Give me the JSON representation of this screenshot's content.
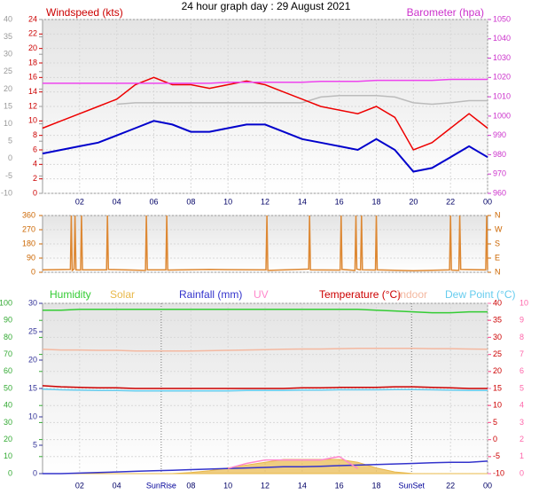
{
  "chart_data": [
    {
      "type": "line",
      "title": "24 hour graph day : 29 August 2021",
      "ylabel": "Windspeed (kts)",
      "y2label": "Barometer (hpa)",
      "axis_colors": {
        "y": "#cc0000",
        "y2": "#cc33cc",
        "y3": "#999999"
      },
      "x": [
        0,
        1,
        2,
        3,
        4,
        5,
        6,
        7,
        8,
        9,
        10,
        11,
        12,
        13,
        14,
        15,
        16,
        17,
        18,
        19,
        20,
        21,
        22,
        23,
        24
      ],
      "xlim": [
        0,
        24
      ],
      "xticks": [
        {
          "value": 2,
          "label": "02"
        },
        {
          "value": 4,
          "label": "04"
        },
        {
          "value": 6,
          "label": "06"
        },
        {
          "value": 8,
          "label": "08"
        },
        10,
        12,
        14,
        16,
        18,
        20,
        22,
        {
          "value": 24,
          "label": "00"
        }
      ],
      "ylim": [
        0,
        24
      ],
      "yticks": [
        0,
        2,
        4,
        6,
        8,
        10,
        12,
        14,
        16,
        18,
        20,
        22,
        24
      ],
      "y2lim": [
        960,
        1050
      ],
      "y2ticks": [
        960,
        970,
        980,
        990,
        1000,
        1010,
        1020,
        1030,
        1040,
        1050
      ],
      "y3lim": [
        -10,
        40
      ],
      "y3ticks": [
        -10,
        -5,
        0,
        5,
        10,
        15,
        20,
        25,
        30,
        35,
        40
      ],
      "grid": true,
      "series": [
        {
          "color": "#bbbbbb",
          "values": [
            null,
            null,
            null,
            null,
            12.3,
            12.5,
            12.5,
            12.5,
            12.5,
            12.5,
            12.5,
            12.5,
            12.5,
            12.5,
            12.5,
            13.3,
            13.5,
            13.5,
            13.5,
            13.3,
            12.5,
            12.3,
            12.5,
            12.8,
            12.8
          ]
        },
        {
          "color": "#ee0000",
          "values": [
            9,
            10,
            11,
            12,
            13,
            15,
            16,
            15,
            15,
            14.5,
            15,
            15.5,
            15,
            14,
            13,
            12,
            11.5,
            11,
            12,
            10.5,
            6,
            7,
            9,
            11,
            9
          ]
        },
        {
          "color": "#0000cc",
          "values": [
            5.5,
            6,
            6.5,
            7,
            8,
            9,
            10,
            9.5,
            8.5,
            8.5,
            9,
            9.5,
            9.5,
            8.5,
            7.5,
            7,
            6.5,
            6,
            7.5,
            6,
            3,
            3.5,
            5,
            6.5,
            5
          ]
        },
        {
          "color": "#ee44ee",
          "axis": "y2",
          "values": [
            1017,
            1017,
            1017,
            1017,
            1017,
            1017,
            1017,
            1017,
            1017,
            1017,
            1017.5,
            1017.5,
            1017.5,
            1017.5,
            1017.5,
            1018,
            1018,
            1018,
            1018.5,
            1018.5,
            1018.5,
            1018.5,
            1019,
            1019,
            1019
          ]
        }
      ]
    },
    {
      "type": "line",
      "axis_colors": {
        "y": "#cc6600",
        "y2": "#cc6600"
      },
      "x": [
        0,
        1.5,
        1.55,
        1.6,
        1.7,
        1.75,
        1.8,
        2.05,
        2.1,
        2.15,
        3.45,
        3.5,
        3.55,
        5.55,
        5.6,
        5.65,
        6.65,
        6.7,
        6.75,
        9,
        12.05,
        12.1,
        12.15,
        14.35,
        14.4,
        14.45,
        16.05,
        16.1,
        16.15,
        16.85,
        16.9,
        16.95,
        17.15,
        17.2,
        17.25,
        17.95,
        18.0,
        18.05,
        20,
        21.95,
        22.0,
        22.05,
        22.45,
        22.5,
        22.55,
        23.9,
        23.95,
        24
      ],
      "xlim": [
        0,
        24
      ],
      "ylim": [
        0,
        360
      ],
      "yticks": [
        0,
        90,
        180,
        270,
        360
      ],
      "y2lim": [
        0,
        360
      ],
      "y2ticks": [
        {
          "value": 0,
          "label": "N"
        },
        {
          "value": 90,
          "label": "E"
        },
        {
          "value": 180,
          "label": "S"
        },
        {
          "value": 270,
          "label": "W"
        },
        {
          "value": 360,
          "label": "N"
        }
      ],
      "grid": true,
      "series": [
        {
          "color": "#dd8833",
          "values": [
            15,
            18,
            360,
            12,
            20,
            360,
            15,
            14,
            360,
            16,
            15,
            360,
            18,
            12,
            360,
            15,
            16,
            360,
            14,
            18,
            15,
            360,
            12,
            20,
            360,
            15,
            14,
            360,
            18,
            12,
            360,
            20,
            15,
            360,
            16,
            14,
            360,
            15,
            10,
            15,
            360,
            14,
            12,
            360,
            18,
            15,
            360,
            15
          ]
        }
      ]
    },
    {
      "type": "line",
      "axis_colors": {
        "y": "#33aa33",
        "y2": "#cc0000",
        "y3": "#333399",
        "y4": "#ff66aa"
      },
      "x": [
        0,
        1,
        2,
        3,
        4,
        5,
        6,
        7,
        8,
        9,
        10,
        11,
        12,
        13,
        14,
        15,
        16,
        17,
        18,
        19,
        20,
        21,
        22,
        23,
        24
      ],
      "xlim": [
        0,
        24
      ],
      "xticks": [
        {
          "value": 2,
          "label": "02"
        },
        {
          "value": 4,
          "label": "04"
        },
        {
          "value": 8,
          "label": "08"
        },
        10,
        12,
        14,
        16,
        18,
        22,
        {
          "value": 24,
          "label": "00"
        }
      ],
      "ylim": [
        0,
        100
      ],
      "yticks": [
        0,
        10,
        20,
        30,
        40,
        50,
        60,
        70,
        80,
        90,
        100
      ],
      "y2lim": [
        -10,
        40
      ],
      "y2ticks": [
        -10,
        -5,
        0,
        5,
        10,
        15,
        20,
        25,
        30,
        35,
        40
      ],
      "y3lim": [
        0,
        30
      ],
      "y3ticks": [
        0,
        5,
        10,
        15,
        20,
        25,
        30
      ],
      "y4lim": [
        0,
        10
      ],
      "y4ticks": [
        0,
        1,
        2,
        3,
        4,
        5,
        6,
        7,
        8,
        9,
        10
      ],
      "grid": true,
      "annotations": [
        {
          "x": 6.4,
          "text": "SunRise"
        },
        {
          "x": 19.9,
          "text": "SunSet"
        }
      ],
      "series": [
        {
          "name": "Humidity",
          "color": "#33cc33",
          "values": [
            96,
            96,
            96.5,
            96.5,
            96.5,
            96.5,
            96.5,
            96.5,
            96.5,
            96.5,
            96.5,
            96.5,
            96.5,
            96.5,
            96.5,
            96.5,
            96.5,
            96.5,
            96,
            95.5,
            95,
            94.5,
            94.5,
            95,
            95
          ]
        },
        {
          "name": "Solar",
          "color": "#e8b84a",
          "axis": "y3",
          "area": true,
          "values": [
            0,
            0,
            0,
            0,
            0,
            0,
            0,
            0,
            0.2,
            0.5,
            1,
            1.5,
            2,
            2.5,
            2.5,
            2.5,
            2.5,
            2,
            1,
            0.3,
            0,
            0,
            0,
            0,
            0
          ]
        },
        {
          "name": "Rainfall (mm)",
          "color": "#3333cc",
          "axis": "y3",
          "values": [
            0,
            0,
            0.1,
            0.2,
            0.3,
            0.4,
            0.5,
            0.6,
            0.7,
            0.8,
            0.9,
            1.0,
            1.1,
            1.2,
            1.2,
            1.3,
            1.4,
            1.5,
            1.6,
            1.7,
            1.8,
            1.9,
            2.0,
            2.0,
            2.2
          ]
        },
        {
          "name": "UV",
          "color": "#ff88cc",
          "axis": "y4",
          "values": [
            null,
            null,
            null,
            null,
            null,
            null,
            null,
            null,
            null,
            null,
            0.3,
            0.6,
            0.8,
            0.8,
            0.8,
            0.8,
            1.0,
            0.3,
            null,
            null,
            null,
            null,
            null,
            null,
            null
          ]
        },
        {
          "name": "Temperature (°C)",
          "color": "#cc0000",
          "axis": "y2",
          "values": [
            15.8,
            15.5,
            15.3,
            15.2,
            15.2,
            15,
            15,
            15,
            15,
            15,
            15,
            15,
            15,
            15,
            15.2,
            15.2,
            15.3,
            15.3,
            15.3,
            15.5,
            15.5,
            15.3,
            15.2,
            15,
            15
          ]
        },
        {
          "name": "Indoor",
          "color": "#f4b8a0",
          "axis": "y2",
          "values": [
            26.5,
            26.3,
            26.3,
            26.2,
            26.2,
            26,
            26,
            26,
            26,
            26.1,
            26.2,
            26.3,
            26.4,
            26.5,
            26.6,
            26.6,
            26.7,
            26.8,
            26.8,
            26.8,
            26.8,
            26.7,
            26.7,
            26.6,
            26.5
          ]
        },
        {
          "name": "Dew Point (°C)",
          "color": "#66ccee",
          "axis": "y2",
          "values": [
            14.8,
            14.6,
            14.5,
            14.4,
            14.4,
            14.3,
            14.3,
            14.3,
            14.3,
            14.3,
            14.3,
            14.4,
            14.4,
            14.4,
            14.5,
            14.5,
            14.6,
            14.6,
            14.6,
            14.7,
            14.7,
            14.6,
            14.5,
            14.4,
            14.4
          ]
        }
      ]
    }
  ]
}
